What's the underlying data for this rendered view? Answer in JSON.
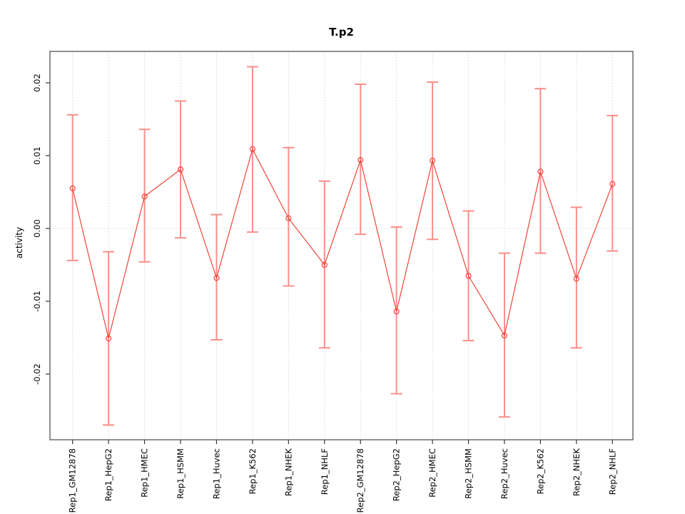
{
  "chart_data": {
    "type": "line",
    "subtype": "points-with-error-bars",
    "title": "T.p2",
    "xlabel": "",
    "ylabel": "activity",
    "ylim": [
      -0.029,
      0.0243
    ],
    "grid": "vertical-dotted-plus-zero-line",
    "legend": "none",
    "y_ticks": [
      {
        "value": 0.02,
        "label": "0.02"
      },
      {
        "value": 0.01,
        "label": "0.01"
      },
      {
        "value": 0.0,
        "label": "0.00"
      },
      {
        "value": -0.01,
        "label": "-0.01"
      },
      {
        "value": -0.02,
        "label": "-0.02"
      }
    ],
    "categories": [
      "Rep1_GM12878",
      "Rep1_HepG2",
      "Rep1_HMEC",
      "Rep1_HSMM",
      "Rep1_Huvec",
      "Rep1_K562",
      "Rep1_NHEK",
      "Rep1_NHLF",
      "Rep2_GM12878",
      "Rep2_HepG2",
      "Rep2_HMEC",
      "Rep2_HSMM",
      "Rep2_Huvec",
      "Rep2_K562",
      "Rep2_NHEK",
      "Rep2_NHLF"
    ],
    "series": [
      {
        "name": "activity",
        "values": [
          0.0055,
          -0.0151,
          0.0044,
          0.0081,
          -0.0068,
          0.0109,
          0.0014,
          -0.005,
          0.0094,
          -0.0114,
          0.0093,
          -0.0065,
          -0.0147,
          0.0078,
          -0.0069,
          0.0061
        ],
        "upper": [
          0.0156,
          -0.0032,
          0.0136,
          0.0175,
          0.0019,
          0.0222,
          0.0111,
          0.0065,
          0.0198,
          0.0002,
          0.0201,
          0.0024,
          -0.0034,
          0.0192,
          0.0029,
          0.0155
        ],
        "lower": [
          -0.0044,
          -0.027,
          -0.0046,
          -0.0013,
          -0.0153,
          -0.0005,
          -0.0079,
          -0.0164,
          -0.0008,
          -0.0227,
          -0.0015,
          -0.0154,
          -0.0259,
          -0.0034,
          -0.0164,
          -0.0031
        ]
      }
    ],
    "colors": {
      "point_line": "#f04438",
      "error_bar": "#f88f8a",
      "grid": "#d9d9d9",
      "box": "#555555",
      "tick": "#333333",
      "text": "#000000"
    }
  }
}
